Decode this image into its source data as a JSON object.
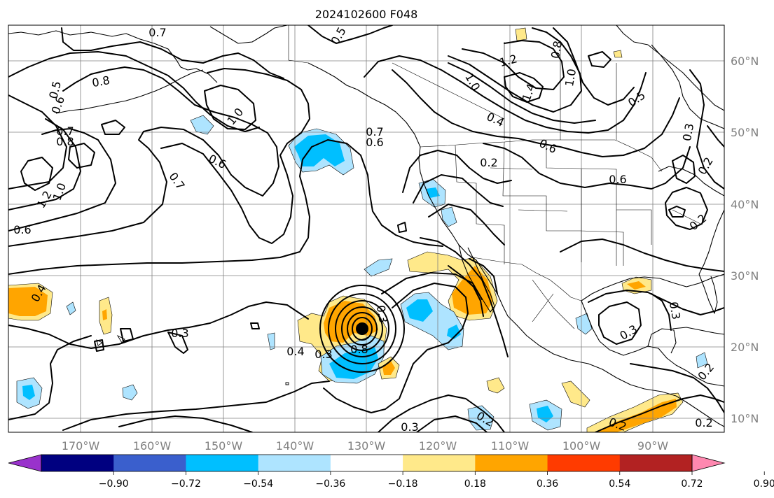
{
  "title": "2024102600 F048",
  "colors": {
    "purple": "#9932cc",
    "navy": "#000080",
    "royal": "#3a5fcd",
    "deepsky": "#00bfff",
    "lightsky": "#aee4ff",
    "white": "#ffffff",
    "lightyellow": "#ffe98a",
    "orange": "#ffa500",
    "orangered": "#ff3b00",
    "firebrick": "#b22222",
    "pink": "#ff88b0"
  },
  "map": {
    "lon_labels": [
      "170°W",
      "160°W",
      "150°W",
      "140°W",
      "130°W",
      "120°W",
      "110°W",
      "100°W",
      "90°W"
    ],
    "lat_labels": [
      "60°N",
      "50°N",
      "40°N",
      "30°N",
      "20°N",
      "10°N"
    ],
    "lon_values": [
      -170,
      -160,
      -150,
      -140,
      -130,
      -120,
      -110,
      -100,
      -90
    ],
    "lat_values": [
      60,
      50,
      40,
      30,
      20,
      10
    ],
    "contour_labels": [
      "0.7",
      "0.5",
      "0.8",
      "0.6",
      "0.7",
      "0.8",
      "1.0",
      "1.2",
      "0.6",
      "1.0",
      "0.6",
      "0.7",
      "0.5",
      "0.7",
      "0.6",
      "1.2",
      "1.0",
      "1.4",
      "0.8",
      "1.0",
      "0.4",
      "0.2",
      "0.6",
      "0.5",
      "0.6",
      "0.3",
      "0.2",
      "0.4",
      "0.3",
      "0.4",
      "0.3",
      "0.8",
      "0.3",
      "0.3",
      "0.3",
      "0.2",
      "0.2",
      "0.3",
      "0.2",
      "0.2",
      "0.2"
    ]
  },
  "colorbar": {
    "ticks": [
      "−0.90",
      "−0.72",
      "−0.54",
      "−0.36",
      "−0.18",
      "0.18",
      "0.36",
      "0.54",
      "0.72",
      "0.90"
    ],
    "tick_values": [
      -0.9,
      -0.72,
      -0.54,
      -0.36,
      -0.18,
      0.18,
      0.36,
      0.54,
      0.72,
      0.9
    ],
    "bins": [
      "purple",
      "navy",
      "royal",
      "deepsky",
      "lightsky",
      "white",
      "lightyellow",
      "orange",
      "orangered",
      "firebrick",
      "pink"
    ]
  }
}
